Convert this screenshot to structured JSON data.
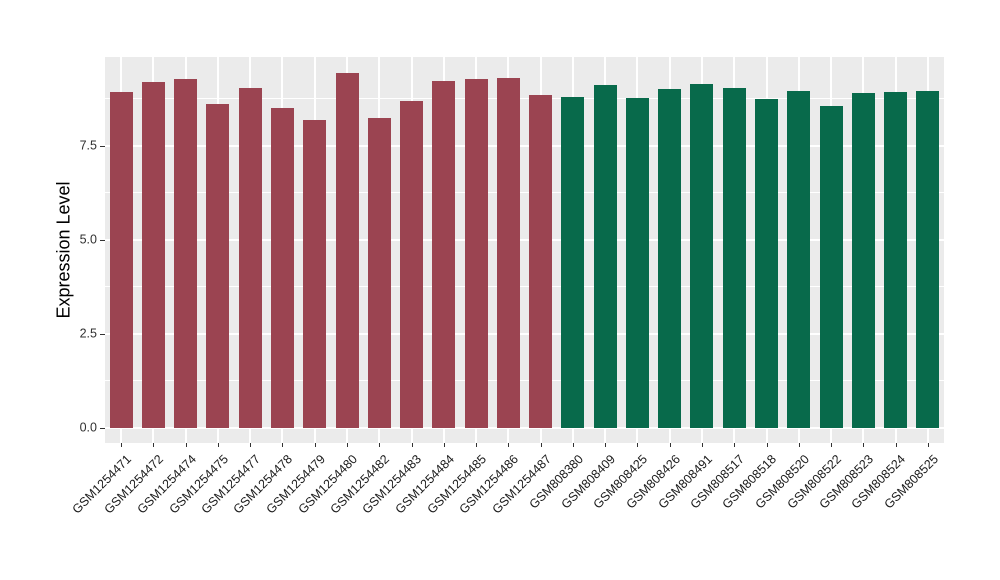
{
  "style": {
    "figure_background": "#FFFFFF",
    "panel_background": "#EBEBEB",
    "grid_color": "#FFFFFF",
    "axis_text_color": "#303030",
    "axis_title_color": "#000000",
    "tick_mark_color": "#333333"
  },
  "chart_data": {
    "type": "bar",
    "title": "",
    "xlabel": "",
    "ylabel": "Expression Level",
    "ylim": [
      -0.4,
      9.87
    ],
    "yticks": [
      0,
      2.5,
      5,
      7.5
    ],
    "ytick_labels": [
      "0.0",
      "2.5",
      "5.0",
      "7.5"
    ],
    "minor_gridlines": [
      1.25,
      3.75,
      6.25,
      8.75
    ],
    "grid": "on",
    "legend_position": "none",
    "group_colors": {
      "group1": "#9B4451",
      "group2": "#086A4B"
    },
    "categories": [
      "GSM1254471",
      "GSM1254472",
      "GSM1254474",
      "GSM1254475",
      "GSM1254477",
      "GSM1254478",
      "GSM1254479",
      "GSM1254480",
      "GSM1254482",
      "GSM1254483",
      "GSM1254484",
      "GSM1254485",
      "GSM1254486",
      "GSM1254487",
      "GSM808380",
      "GSM808409",
      "GSM808425",
      "GSM808426",
      "GSM808491",
      "GSM808517",
      "GSM808518",
      "GSM808520",
      "GSM808522",
      "GSM808523",
      "GSM808524",
      "GSM808525"
    ],
    "groups": [
      "group1",
      "group1",
      "group1",
      "group1",
      "group1",
      "group1",
      "group1",
      "group1",
      "group1",
      "group1",
      "group1",
      "group1",
      "group1",
      "group1",
      "group2",
      "group2",
      "group2",
      "group2",
      "group2",
      "group2",
      "group2",
      "group2",
      "group2",
      "group2",
      "group2",
      "group2"
    ],
    "values": [
      8.94,
      9.2,
      9.27,
      8.63,
      9.04,
      8.52,
      8.19,
      9.43,
      8.24,
      8.7,
      9.23,
      9.28,
      9.3,
      8.87,
      8.81,
      9.11,
      8.78,
      9.01,
      9.14,
      9.05,
      8.74,
      8.97,
      8.56,
      8.9,
      8.94,
      8.96
    ]
  }
}
